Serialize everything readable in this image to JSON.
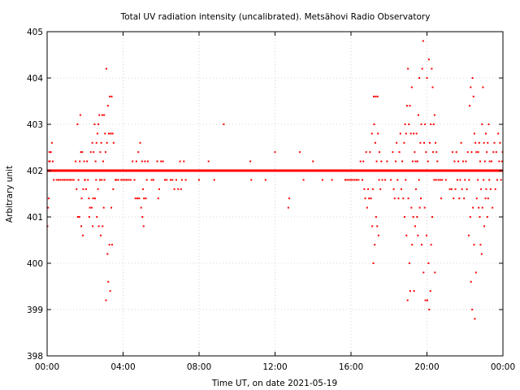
{
  "chart_data": {
    "type": "scatter",
    "title": "Total UV radiation intensity (uncalibrated). Metsähovi Radio Observatory",
    "xlabel": "Time UT, on date 2021-05-19",
    "ylabel": "Arbitrary unit",
    "xlim": [
      0,
      24
    ],
    "ylim": [
      398,
      405
    ],
    "x_ticks": [
      {
        "value": 0,
        "label": "00:00"
      },
      {
        "value": 4,
        "label": "04:00"
      },
      {
        "value": 8,
        "label": "08:00"
      },
      {
        "value": 12,
        "label": "12:00"
      },
      {
        "value": 16,
        "label": "16:00"
      },
      {
        "value": 20,
        "label": "20:00"
      },
      {
        "value": 24,
        "label": "00:00"
      }
    ],
    "y_ticks": [
      {
        "value": 398,
        "label": "398"
      },
      {
        "value": 399,
        "label": "399"
      },
      {
        "value": 400,
        "label": "400"
      },
      {
        "value": 401,
        "label": "401"
      },
      {
        "value": 402,
        "label": "402"
      },
      {
        "value": 403,
        "label": "403"
      },
      {
        "value": 404,
        "label": "404"
      },
      {
        "value": 405,
        "label": "405"
      }
    ],
    "grid": true,
    "marker_color": "#ff0000",
    "baseline_segments": [
      {
        "x_start": 0.0,
        "x_end": 24.0,
        "y": 402.0
      }
    ],
    "points": [
      [
        0.02,
        400.8
      ],
      [
        0.05,
        401.2
      ],
      [
        0.08,
        401.4
      ],
      [
        0.1,
        402.2
      ],
      [
        0.12,
        402.4
      ],
      [
        0.15,
        402.2
      ],
      [
        0.2,
        402.4
      ],
      [
        0.25,
        402.6
      ],
      [
        0.3,
        402.2
      ],
      [
        0.35,
        401.8
      ],
      [
        0.4,
        402.0
      ],
      [
        0.5,
        401.8
      ],
      [
        0.6,
        401.8
      ],
      [
        0.7,
        401.8
      ],
      [
        0.8,
        401.8
      ],
      [
        0.9,
        401.8
      ],
      [
        1.0,
        401.8
      ],
      [
        1.1,
        401.8
      ],
      [
        1.2,
        401.8
      ],
      [
        1.3,
        401.8
      ],
      [
        1.4,
        401.8
      ],
      [
        1.5,
        402.2
      ],
      [
        1.55,
        401.6
      ],
      [
        1.6,
        403.0
      ],
      [
        1.62,
        401.0
      ],
      [
        1.65,
        401.8
      ],
      [
        1.7,
        401.0
      ],
      [
        1.72,
        402.2
      ],
      [
        1.75,
        403.2
      ],
      [
        1.78,
        402.4
      ],
      [
        1.8,
        400.8
      ],
      [
        1.82,
        401.4
      ],
      [
        1.85,
        402.4
      ],
      [
        1.88,
        400.6
      ],
      [
        1.9,
        401.6
      ],
      [
        1.92,
        402.0
      ],
      [
        1.95,
        402.2
      ],
      [
        1.98,
        401.8
      ],
      [
        2.0,
        401.8
      ],
      [
        2.05,
        401.6
      ],
      [
        2.1,
        402.2
      ],
      [
        2.15,
        401.8
      ],
      [
        2.2,
        401.4
      ],
      [
        2.22,
        401.0
      ],
      [
        2.25,
        401.2
      ],
      [
        2.3,
        402.4
      ],
      [
        2.35,
        401.2
      ],
      [
        2.38,
        402.6
      ],
      [
        2.4,
        400.8
      ],
      [
        2.42,
        401.4
      ],
      [
        2.45,
        402.4
      ],
      [
        2.5,
        403.0
      ],
      [
        2.52,
        401.4
      ],
      [
        2.55,
        402.2
      ],
      [
        2.58,
        401.8
      ],
      [
        2.6,
        402.6
      ],
      [
        2.62,
        401.0
      ],
      [
        2.65,
        402.8
      ],
      [
        2.68,
        401.6
      ],
      [
        2.7,
        403.0
      ],
      [
        2.72,
        400.8
      ],
      [
        2.75,
        403.2
      ],
      [
        2.78,
        401.8
      ],
      [
        2.8,
        402.4
      ],
      [
        2.82,
        400.6
      ],
      [
        2.85,
        402.6
      ],
      [
        2.88,
        401.8
      ],
      [
        2.9,
        403.2
      ],
      [
        2.92,
        400.8
      ],
      [
        2.95,
        402.2
      ],
      [
        2.98,
        401.2
      ],
      [
        3.0,
        403.2
      ],
      [
        3.02,
        401.8
      ],
      [
        3.05,
        402.8
      ],
      [
        3.08,
        402.4
      ],
      [
        3.1,
        399.2
      ],
      [
        3.12,
        404.2
      ],
      [
        3.15,
        402.6
      ],
      [
        3.18,
        400.2
      ],
      [
        3.2,
        403.4
      ],
      [
        3.22,
        399.6
      ],
      [
        3.25,
        402.8
      ],
      [
        3.28,
        400.4
      ],
      [
        3.3,
        403.6
      ],
      [
        3.32,
        399.4
      ],
      [
        3.35,
        402.8
      ],
      [
        3.38,
        401.2
      ],
      [
        3.4,
        403.6
      ],
      [
        3.42,
        400.4
      ],
      [
        3.45,
        402.8
      ],
      [
        3.48,
        401.6
      ],
      [
        3.5,
        402.6
      ],
      [
        3.55,
        402.0
      ],
      [
        3.6,
        401.8
      ],
      [
        3.65,
        401.8
      ],
      [
        3.7,
        402.0
      ],
      [
        3.75,
        401.8
      ],
      [
        3.8,
        402.0
      ],
      [
        3.9,
        401.8
      ],
      [
        4.0,
        401.8
      ],
      [
        4.1,
        401.8
      ],
      [
        4.2,
        401.8
      ],
      [
        4.3,
        401.8
      ],
      [
        4.4,
        401.8
      ],
      [
        4.5,
        402.2
      ],
      [
        4.6,
        401.8
      ],
      [
        4.65,
        401.4
      ],
      [
        4.7,
        402.2
      ],
      [
        4.75,
        401.4
      ],
      [
        4.8,
        402.4
      ],
      [
        4.85,
        401.4
      ],
      [
        4.9,
        402.6
      ],
      [
        4.95,
        401.2
      ],
      [
        5.0,
        402.2
      ],
      [
        5.02,
        401.0
      ],
      [
        5.05,
        401.6
      ],
      [
        5.08,
        400.8
      ],
      [
        5.1,
        401.4
      ],
      [
        5.15,
        402.2
      ],
      [
        5.2,
        401.4
      ],
      [
        5.25,
        401.8
      ],
      [
        5.3,
        402.2
      ],
      [
        5.4,
        402.0
      ],
      [
        5.5,
        401.8
      ],
      [
        5.6,
        401.8
      ],
      [
        5.7,
        402.0
      ],
      [
        5.8,
        402.2
      ],
      [
        5.85,
        401.4
      ],
      [
        5.9,
        401.6
      ],
      [
        6.0,
        402.2
      ],
      [
        6.1,
        402.2
      ],
      [
        6.2,
        401.8
      ],
      [
        6.3,
        401.8
      ],
      [
        6.4,
        402.0
      ],
      [
        6.5,
        401.8
      ],
      [
        6.6,
        401.8
      ],
      [
        6.7,
        401.6
      ],
      [
        6.8,
        401.8
      ],
      [
        6.9,
        401.6
      ],
      [
        7.0,
        402.2
      ],
      [
        7.05,
        401.6
      ],
      [
        7.1,
        401.8
      ],
      [
        7.2,
        402.2
      ],
      [
        7.3,
        401.8
      ],
      [
        8.0,
        401.8
      ],
      [
        8.5,
        402.2
      ],
      [
        8.8,
        401.8
      ],
      [
        9.3,
        403.0
      ],
      [
        10.7,
        402.2
      ],
      [
        10.75,
        401.8
      ],
      [
        11.5,
        401.8
      ],
      [
        12.0,
        402.4
      ],
      [
        12.7,
        401.2
      ],
      [
        12.75,
        401.4
      ],
      [
        13.3,
        402.4
      ],
      [
        13.5,
        401.8
      ],
      [
        14.0,
        402.2
      ],
      [
        14.5,
        401.8
      ],
      [
        15.0,
        401.8
      ],
      [
        15.7,
        401.8
      ],
      [
        15.8,
        401.8
      ],
      [
        15.9,
        401.8
      ],
      [
        16.0,
        401.8
      ],
      [
        16.1,
        401.8
      ],
      [
        16.2,
        401.8
      ],
      [
        16.3,
        401.8
      ],
      [
        16.4,
        401.8
      ],
      [
        16.5,
        402.2
      ],
      [
        16.6,
        401.8
      ],
      [
        16.65,
        402.2
      ],
      [
        16.7,
        401.6
      ],
      [
        16.75,
        401.4
      ],
      [
        16.8,
        402.4
      ],
      [
        16.85,
        401.2
      ],
      [
        16.9,
        401.6
      ],
      [
        16.95,
        401.4
      ],
      [
        17.0,
        402.4
      ],
      [
        17.05,
        401.4
      ],
      [
        17.1,
        402.8
      ],
      [
        17.12,
        400.8
      ],
      [
        17.15,
        401.6
      ],
      [
        17.18,
        400.0
      ],
      [
        17.2,
        403.6
      ],
      [
        17.22,
        403.0
      ],
      [
        17.25,
        400.4
      ],
      [
        17.28,
        402.6
      ],
      [
        17.3,
        403.6
      ],
      [
        17.32,
        401.0
      ],
      [
        17.35,
        402.2
      ],
      [
        17.38,
        400.8
      ],
      [
        17.4,
        403.6
      ],
      [
        17.42,
        402.8
      ],
      [
        17.45,
        400.6
      ],
      [
        17.48,
        401.8
      ],
      [
        17.5,
        402.4
      ],
      [
        17.55,
        401.6
      ],
      [
        17.6,
        402.2
      ],
      [
        17.65,
        401.8
      ],
      [
        17.7,
        402.0
      ],
      [
        17.8,
        401.8
      ],
      [
        17.9,
        402.2
      ],
      [
        18.0,
        402.0
      ],
      [
        18.1,
        401.8
      ],
      [
        18.2,
        402.4
      ],
      [
        18.25,
        401.6
      ],
      [
        18.3,
        401.4
      ],
      [
        18.35,
        402.2
      ],
      [
        18.4,
        402.6
      ],
      [
        18.45,
        401.8
      ],
      [
        18.5,
        401.4
      ],
      [
        18.55,
        402.4
      ],
      [
        18.6,
        402.8
      ],
      [
        18.65,
        401.6
      ],
      [
        18.7,
        402.2
      ],
      [
        18.75,
        401.4
      ],
      [
        18.8,
        402.6
      ],
      [
        18.82,
        401.0
      ],
      [
        18.85,
        403.0
      ],
      [
        18.88,
        401.8
      ],
      [
        18.9,
        402.8
      ],
      [
        18.92,
        400.6
      ],
      [
        18.95,
        403.4
      ],
      [
        18.98,
        399.2
      ],
      [
        19.0,
        404.2
      ],
      [
        19.02,
        401.4
      ],
      [
        19.05,
        403.0
      ],
      [
        19.08,
        400.0
      ],
      [
        19.1,
        403.4
      ],
      [
        19.12,
        399.4
      ],
      [
        19.15,
        402.8
      ],
      [
        19.18,
        401.2
      ],
      [
        19.2,
        403.8
      ],
      [
        19.22,
        400.4
      ],
      [
        19.25,
        402.2
      ],
      [
        19.28,
        401.0
      ],
      [
        19.3,
        402.8
      ],
      [
        19.32,
        399.4
      ],
      [
        19.35,
        402.4
      ],
      [
        19.38,
        400.8
      ],
      [
        19.4,
        402.2
      ],
      [
        19.42,
        401.6
      ],
      [
        19.45,
        402.8
      ],
      [
        19.48,
        401.0
      ],
      [
        19.5,
        402.2
      ],
      [
        19.52,
        400.6
      ],
      [
        19.55,
        403.2
      ],
      [
        19.58,
        401.8
      ],
      [
        19.6,
        404.0
      ],
      [
        19.62,
        401.2
      ],
      [
        19.65,
        402.6
      ],
      [
        19.68,
        401.4
      ],
      [
        19.7,
        403.0
      ],
      [
        19.72,
        400.4
      ],
      [
        19.75,
        404.2
      ],
      [
        19.78,
        402.0
      ],
      [
        19.8,
        404.8
      ],
      [
        19.82,
        399.8
      ],
      [
        19.85,
        402.6
      ],
      [
        19.88,
        401.2
      ],
      [
        19.9,
        403.0
      ],
      [
        19.92,
        399.2
      ],
      [
        19.95,
        402.4
      ],
      [
        19.98,
        400.6
      ],
      [
        20.0,
        404.0
      ],
      [
        20.02,
        399.2
      ],
      [
        20.05,
        402.2
      ],
      [
        20.08,
        400.0
      ],
      [
        20.1,
        404.4
      ],
      [
        20.12,
        399.0
      ],
      [
        20.15,
        402.6
      ],
      [
        20.18,
        399.4
      ],
      [
        20.2,
        403.0
      ],
      [
        20.22,
        400.4
      ],
      [
        20.25,
        404.2
      ],
      [
        20.28,
        401.0
      ],
      [
        20.3,
        403.8
      ],
      [
        20.32,
        402.4
      ],
      [
        20.35,
        403.0
      ],
      [
        20.38,
        401.8
      ],
      [
        20.4,
        403.2
      ],
      [
        20.42,
        399.8
      ],
      [
        20.45,
        402.6
      ],
      [
        20.48,
        401.8
      ],
      [
        20.5,
        402.4
      ],
      [
        20.55,
        402.2
      ],
      [
        20.6,
        401.8
      ],
      [
        20.65,
        402.0
      ],
      [
        20.7,
        401.8
      ],
      [
        20.75,
        401.4
      ],
      [
        20.8,
        401.8
      ],
      [
        20.9,
        402.0
      ],
      [
        21.0,
        401.8
      ],
      [
        21.1,
        402.0
      ],
      [
        21.2,
        401.6
      ],
      [
        21.3,
        401.6
      ],
      [
        21.35,
        402.4
      ],
      [
        21.4,
        401.4
      ],
      [
        21.45,
        402.2
      ],
      [
        21.5,
        401.6
      ],
      [
        21.55,
        402.4
      ],
      [
        21.6,
        401.8
      ],
      [
        21.65,
        402.2
      ],
      [
        21.7,
        401.4
      ],
      [
        21.75,
        401.8
      ],
      [
        21.8,
        402.6
      ],
      [
        21.85,
        401.6
      ],
      [
        21.9,
        402.2
      ],
      [
        21.95,
        401.4
      ],
      [
        22.0,
        401.8
      ],
      [
        22.05,
        402.2
      ],
      [
        22.1,
        401.6
      ],
      [
        22.15,
        402.4
      ],
      [
        22.2,
        400.6
      ],
      [
        22.22,
        401.8
      ],
      [
        22.25,
        403.4
      ],
      [
        22.28,
        401.0
      ],
      [
        22.3,
        403.8
      ],
      [
        22.32,
        399.6
      ],
      [
        22.35,
        402.4
      ],
      [
        22.38,
        399.0
      ],
      [
        22.4,
        404.0
      ],
      [
        22.42,
        401.2
      ],
      [
        22.45,
        403.6
      ],
      [
        22.48,
        400.4
      ],
      [
        22.5,
        402.8
      ],
      [
        22.52,
        398.8
      ],
      [
        22.55,
        402.6
      ],
      [
        22.58,
        399.8
      ],
      [
        22.6,
        402.4
      ],
      [
        22.62,
        401.4
      ],
      [
        22.65,
        402.0
      ],
      [
        22.68,
        401.8
      ],
      [
        22.7,
        402.4
      ],
      [
        22.72,
        401.2
      ],
      [
        22.75,
        402.6
      ],
      [
        22.78,
        401.0
      ],
      [
        22.8,
        402.2
      ],
      [
        22.82,
        400.4
      ],
      [
        22.85,
        401.6
      ],
      [
        22.88,
        400.2
      ],
      [
        22.9,
        403.0
      ],
      [
        22.92,
        401.2
      ],
      [
        22.95,
        403.8
      ],
      [
        22.98,
        401.8
      ],
      [
        23.0,
        402.6
      ],
      [
        23.02,
        400.8
      ],
      [
        23.05,
        402.2
      ],
      [
        23.08,
        401.4
      ],
      [
        23.1,
        402.8
      ],
      [
        23.12,
        401.6
      ],
      [
        23.15,
        402.4
      ],
      [
        23.18,
        401.0
      ],
      [
        23.2,
        402.6
      ],
      [
        23.22,
        401.4
      ],
      [
        23.25,
        403.0
      ],
      [
        23.28,
        401.8
      ],
      [
        23.3,
        402.2
      ],
      [
        23.35,
        401.6
      ],
      [
        23.4,
        402.2
      ],
      [
        23.45,
        401.2
      ],
      [
        23.5,
        402.4
      ],
      [
        23.55,
        402.6
      ],
      [
        23.6,
        401.6
      ],
      [
        23.65,
        402.4
      ],
      [
        23.7,
        401.8
      ],
      [
        23.75,
        402.8
      ],
      [
        23.8,
        402.2
      ],
      [
        23.85,
        402.6
      ],
      [
        23.9,
        401.8
      ],
      [
        23.95,
        402.2
      ],
      [
        23.98,
        402.4
      ]
    ]
  }
}
